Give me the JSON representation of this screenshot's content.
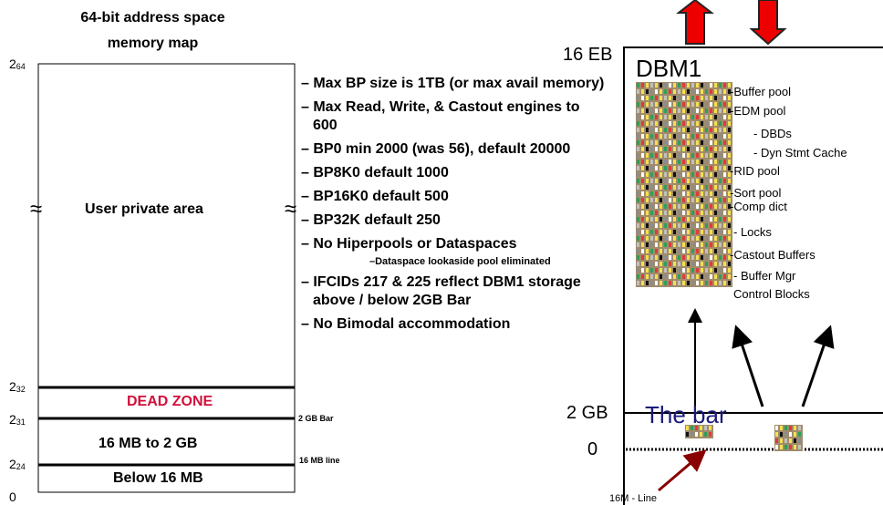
{
  "left_map": {
    "title": "64-bit address space memory map",
    "axis_labels": [
      {
        "base": "2",
        "exp": "64"
      },
      {
        "base": "2",
        "exp": "32"
      },
      {
        "base": "2",
        "exp": "31"
      },
      {
        "base": "2",
        "exp": "24"
      },
      {
        "base": "0"
      }
    ],
    "approx_left": "≈",
    "approx_right": "≈",
    "regions": {
      "user": "User private area",
      "dead": "DEAD ZONE",
      "mid": "16 MB to 2 GB",
      "below": "Below 16 MB"
    },
    "line_labels": {
      "bar": "2 GB Bar",
      "line": "16 MB line"
    }
  },
  "bullets": [
    "– Max BP size is 1TB (or max avail memory)",
    "– Max Read, Write, & Castout engines to 600",
    "– BP0 min 2000 (was 56), default 20000",
    "– BP8K0 default 1000",
    "– BP16K0 default 500",
    "– BP32K default 250",
    "– No Hiperpools or Dataspaces",
    "–Dataspace lookaside pool eliminated",
    "– IFCIDs 217 & 225 reflect DBM1 storage above / below 2GB Bar",
    "– No Bimodal accommodation"
  ],
  "dbm1": {
    "top_label": "16 EB",
    "title": "DBM1",
    "pools": [
      "-Buffer pool",
      "-EDM pool",
      "- DBDs",
      "- Dyn Stmt Cache",
      "-RID pool",
      "-Sort pool",
      "-Comp dict",
      "- Locks",
      "-Castout Buffers",
      "- Buffer Mgr Control Blocks"
    ],
    "bar_label": "2 GB",
    "bar_name": "The bar",
    "zero": "0",
    "line_label": "16M - Line"
  }
}
